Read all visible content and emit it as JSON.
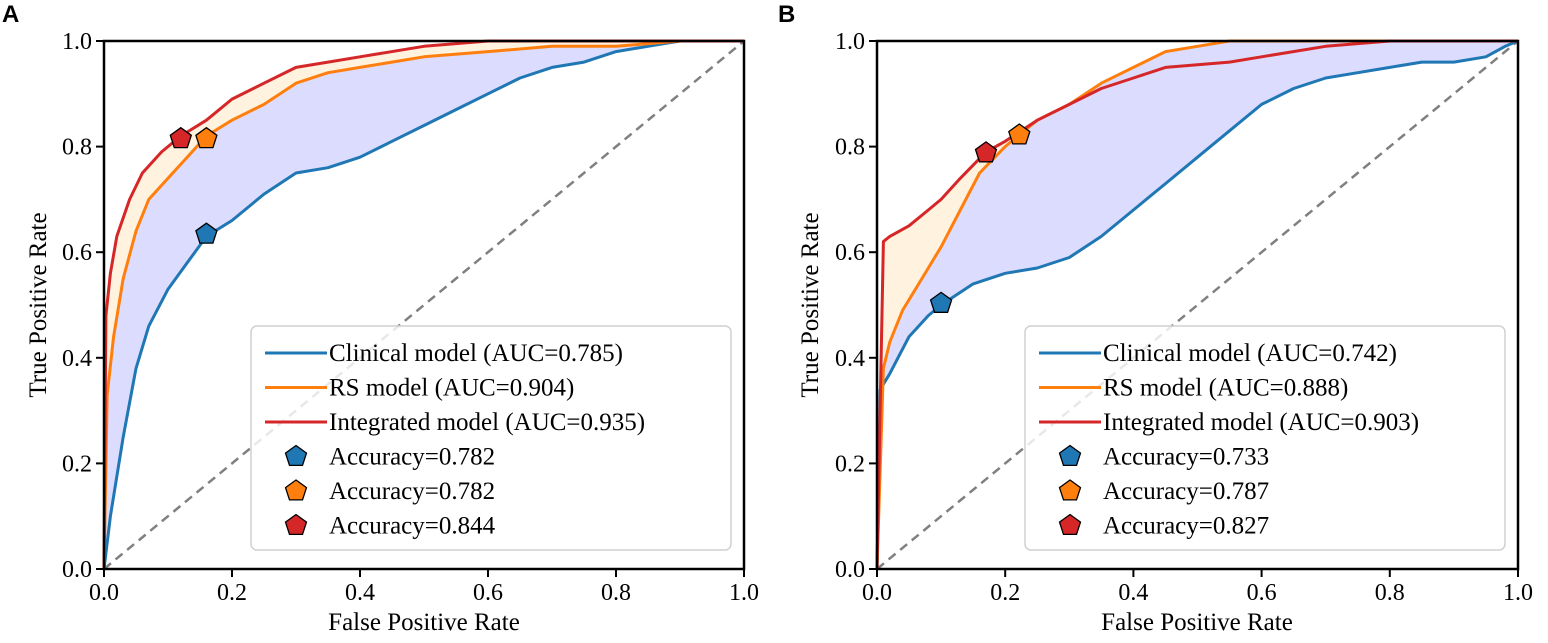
{
  "chart_data": [
    {
      "type": "line",
      "panel_label": "A",
      "xlabel": "False Positive Rate",
      "ylabel": "True Positive Rate",
      "xlim": [
        0,
        1
      ],
      "ylim": [
        0,
        1
      ],
      "x_ticks": [
        "0.0",
        "0.2",
        "0.4",
        "0.6",
        "0.8",
        "1.0"
      ],
      "y_ticks": [
        "0.0",
        "0.2",
        "0.4",
        "0.6",
        "0.8",
        "1.0"
      ],
      "grid": false,
      "legend_position": "bottom-right",
      "diagonal": true,
      "series": [
        {
          "name": "Clinical model (AUC=0.785)",
          "color": "#1f77b4",
          "x": [
            0,
            0.01,
            0.03,
            0.05,
            0.07,
            0.1,
            0.13,
            0.16,
            0.2,
            0.25,
            0.3,
            0.35,
            0.4,
            0.45,
            0.5,
            0.55,
            0.6,
            0.65,
            0.7,
            0.75,
            0.8,
            0.85,
            0.9,
            0.95,
            1.0
          ],
          "y": [
            0,
            0.1,
            0.25,
            0.38,
            0.46,
            0.53,
            0.58,
            0.63,
            0.66,
            0.71,
            0.75,
            0.76,
            0.78,
            0.81,
            0.84,
            0.87,
            0.9,
            0.93,
            0.95,
            0.96,
            0.98,
            0.99,
            1.0,
            1.0,
            1.0
          ]
        },
        {
          "name": "RS model (AUC=0.904)",
          "color": "#ff7f0e",
          "x": [
            0,
            0.005,
            0.015,
            0.03,
            0.05,
            0.07,
            0.1,
            0.13,
            0.16,
            0.2,
            0.25,
            0.3,
            0.35,
            0.4,
            0.5,
            0.6,
            0.7,
            0.8,
            0.9,
            1.0
          ],
          "y": [
            0,
            0.33,
            0.44,
            0.55,
            0.64,
            0.7,
            0.74,
            0.78,
            0.82,
            0.85,
            0.88,
            0.92,
            0.94,
            0.95,
            0.97,
            0.98,
            0.99,
            0.99,
            1.0,
            1.0
          ]
        },
        {
          "name": "Integrated model (AUC=0.935)",
          "color": "#d62728",
          "x": [
            0,
            0.003,
            0.01,
            0.02,
            0.04,
            0.06,
            0.09,
            0.12,
            0.16,
            0.2,
            0.25,
            0.3,
            0.35,
            0.4,
            0.5,
            0.6,
            0.7,
            0.8,
            0.9,
            1.0
          ],
          "y": [
            0,
            0.48,
            0.56,
            0.63,
            0.7,
            0.75,
            0.79,
            0.82,
            0.85,
            0.89,
            0.92,
            0.95,
            0.96,
            0.97,
            0.99,
            1.0,
            1.0,
            1.0,
            1.0,
            1.0
          ]
        }
      ],
      "operating_points": [
        {
          "label": "Accuracy=0.782",
          "color": "#1f77b4",
          "x": 0.16,
          "y": 0.634
        },
        {
          "label": "Accuracy=0.782",
          "color": "#ff7f0e",
          "x": 0.16,
          "y": 0.815
        },
        {
          "label": "Accuracy=0.844",
          "color": "#d62728",
          "x": 0.12,
          "y": 0.815
        }
      ]
    },
    {
      "type": "line",
      "panel_label": "B",
      "xlabel": "False Positive Rate",
      "ylabel": "True Positive Rate",
      "xlim": [
        0,
        1
      ],
      "ylim": [
        0,
        1
      ],
      "x_ticks": [
        "0.0",
        "0.2",
        "0.4",
        "0.6",
        "0.8",
        "1.0"
      ],
      "y_ticks": [
        "0.0",
        "0.2",
        "0.4",
        "0.6",
        "0.8",
        "1.0"
      ],
      "grid": false,
      "legend_position": "bottom-right",
      "diagonal": true,
      "series": [
        {
          "name": "Clinical model (AUC=0.742)",
          "color": "#1f77b4",
          "x": [
            0,
            0.005,
            0.02,
            0.05,
            0.08,
            0.1,
            0.15,
            0.2,
            0.25,
            0.3,
            0.35,
            0.4,
            0.45,
            0.5,
            0.55,
            0.6,
            0.65,
            0.7,
            0.75,
            0.8,
            0.85,
            0.9,
            0.95,
            0.98,
            1.0
          ],
          "y": [
            0,
            0.34,
            0.37,
            0.44,
            0.48,
            0.5,
            0.54,
            0.56,
            0.57,
            0.59,
            0.63,
            0.68,
            0.73,
            0.78,
            0.83,
            0.88,
            0.91,
            0.93,
            0.94,
            0.95,
            0.96,
            0.96,
            0.97,
            0.99,
            1.0
          ]
        },
        {
          "name": "RS model (AUC=0.888)",
          "color": "#ff7f0e",
          "x": [
            0,
            0.01,
            0.02,
            0.04,
            0.07,
            0.1,
            0.13,
            0.16,
            0.2,
            0.22,
            0.25,
            0.3,
            0.35,
            0.4,
            0.45,
            0.5,
            0.55,
            0.6,
            0.7,
            0.8,
            1.0
          ],
          "y": [
            0,
            0.38,
            0.43,
            0.49,
            0.55,
            0.61,
            0.68,
            0.75,
            0.8,
            0.82,
            0.85,
            0.88,
            0.92,
            0.95,
            0.98,
            0.99,
            1.0,
            1.0,
            1.0,
            1.0,
            1.0
          ]
        },
        {
          "name": "Integrated model (AUC=0.903)",
          "color": "#d62728",
          "x": [
            0,
            0.01,
            0.02,
            0.05,
            0.08,
            0.1,
            0.13,
            0.17,
            0.2,
            0.25,
            0.3,
            0.35,
            0.4,
            0.45,
            0.5,
            0.55,
            0.6,
            0.7,
            0.8,
            0.9,
            1.0
          ],
          "y": [
            0,
            0.62,
            0.63,
            0.65,
            0.68,
            0.7,
            0.74,
            0.79,
            0.81,
            0.85,
            0.88,
            0.91,
            0.93,
            0.95,
            0.955,
            0.96,
            0.97,
            0.99,
            1.0,
            1.0,
            1.0
          ]
        }
      ],
      "operating_points": [
        {
          "label": "Accuracy=0.733",
          "color": "#1f77b4",
          "x": 0.1,
          "y": 0.503
        },
        {
          "label": "Accuracy=0.787",
          "color": "#ff7f0e",
          "x": 0.222,
          "y": 0.822
        },
        {
          "label": "Accuracy=0.827",
          "color": "#d62728",
          "x": 0.17,
          "y": 0.788
        }
      ]
    }
  ]
}
